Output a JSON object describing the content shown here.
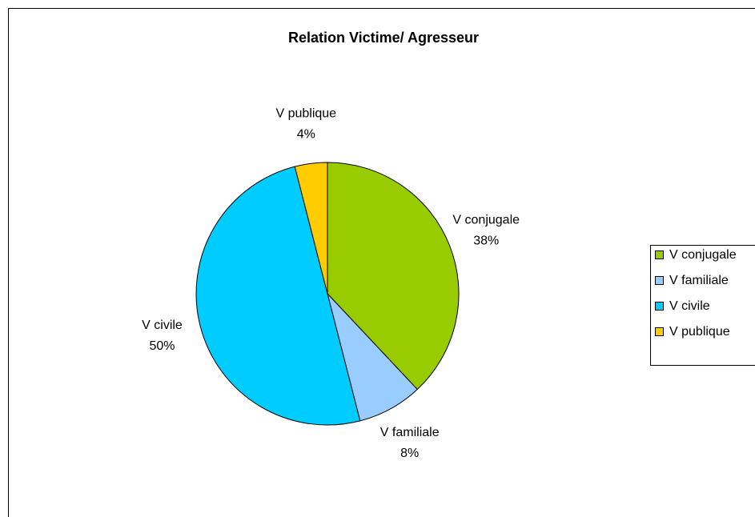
{
  "chart_data": {
    "type": "pie",
    "title": "Relation Victime/ Agresseur",
    "categories": [
      "V conjugale",
      "V familiale",
      "V civile",
      "V publique"
    ],
    "values": [
      38,
      8,
      50,
      4
    ],
    "value_labels": [
      "38%",
      "8%",
      "50%",
      "4%"
    ],
    "colors": [
      "#99cc00",
      "#99ccff",
      "#00ccff",
      "#ffcc00"
    ],
    "legend": "right"
  }
}
